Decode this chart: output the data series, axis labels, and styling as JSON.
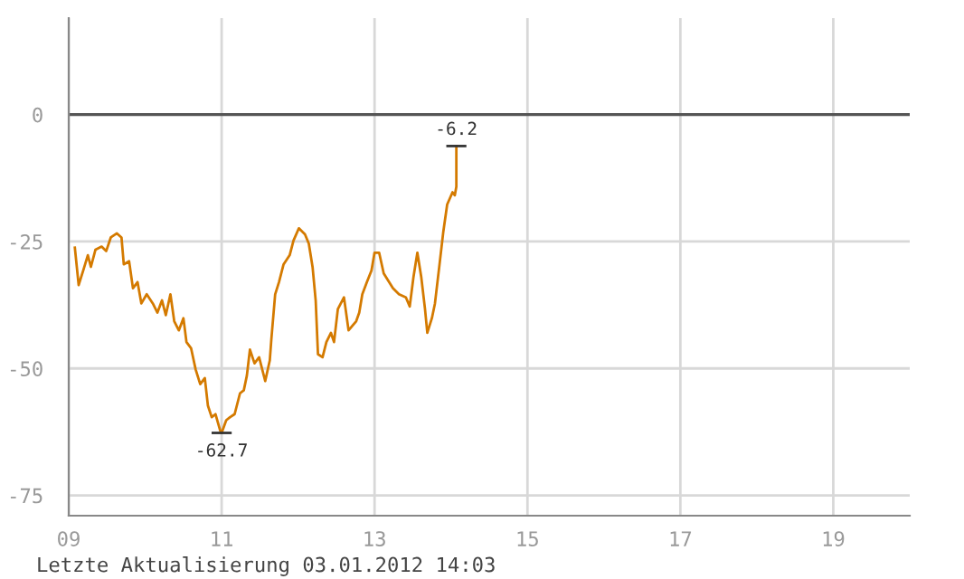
{
  "chart_data": {
    "type": "line",
    "x": [
      9.08,
      9.13,
      9.19,
      9.25,
      9.29,
      9.35,
      9.43,
      9.49,
      9.55,
      9.63,
      9.69,
      9.72,
      9.79,
      9.84,
      9.9,
      9.95,
      10.02,
      10.1,
      10.16,
      10.22,
      10.27,
      10.33,
      10.38,
      10.44,
      10.5,
      10.54,
      10.6,
      10.66,
      10.72,
      10.78,
      10.82,
      10.87,
      10.92,
      10.98,
      11.0,
      11.06,
      11.11,
      11.17,
      11.24,
      11.29,
      11.33,
      11.37,
      11.43,
      11.49,
      11.57,
      11.63,
      11.65,
      11.7,
      11.75,
      11.81,
      11.89,
      11.94,
      12.01,
      12.09,
      12.14,
      12.19,
      12.23,
      12.26,
      12.32,
      12.37,
      12.43,
      12.47,
      12.52,
      12.6,
      12.66,
      12.76,
      12.8,
      12.84,
      12.9,
      12.96,
      13.0,
      13.06,
      13.12,
      13.24,
      13.32,
      13.41,
      13.46,
      13.51,
      13.56,
      13.61,
      13.66,
      13.69,
      13.75,
      13.79,
      13.85,
      13.9,
      13.95,
      14.02,
      14.05,
      14.07,
      14.07
    ],
    "series": [
      {
        "color": "#d47a00",
        "values": [
          -26.2,
          -33.6,
          -30.7,
          -27.7,
          -30,
          -26.6,
          -26,
          -26.9,
          -24.2,
          -23.4,
          -24.2,
          -29.5,
          -28.9,
          -34.2,
          -33,
          -37.2,
          -35.4,
          -37.2,
          -39,
          -36.6,
          -39.5,
          -35.4,
          -40.7,
          -42.5,
          -40.1,
          -44.8,
          -46,
          -50.2,
          -53.1,
          -51.9,
          -57.3,
          -59.6,
          -59,
          -62.2,
          -62.7,
          -60.2,
          -59.6,
          -59,
          -54.9,
          -54.3,
          -51.4,
          -46.3,
          -49,
          -47.8,
          -52.5,
          -48.4,
          -44.3,
          -35.4,
          -33,
          -29.5,
          -27.7,
          -24.8,
          -22.4,
          -23.6,
          -25.4,
          -30.1,
          -36.6,
          -47.2,
          -47.8,
          -44.8,
          -43,
          -44.8,
          -38.3,
          -36,
          -42.5,
          -40.7,
          -39,
          -35.4,
          -33,
          -30.7,
          -27.2,
          -27.2,
          -31.3,
          -34.2,
          -35.4,
          -36,
          -37.8,
          -31.9,
          -27.2,
          -31.9,
          -38.3,
          -43,
          -40.1,
          -37.2,
          -29.5,
          -23,
          -17.7,
          -15.3,
          -15.9,
          -14.2,
          -6.2
        ]
      }
    ],
    "xlim": [
      9,
      20
    ],
    "xticks": [
      {
        "value": 9,
        "label": "09"
      },
      11,
      13,
      15,
      17,
      19
    ],
    "ylim": [
      -79,
      19
    ],
    "yticks": [
      -75,
      -50,
      -25,
      0
    ],
    "grid": true,
    "ref_lines": [
      {
        "axis": "y",
        "value": 0,
        "label": null,
        "color": "#555555"
      }
    ],
    "annotations": [
      {
        "text": "-62.7",
        "x": 11.0,
        "y": -62.7
      },
      {
        "text": "-6.2",
        "x": 14.07,
        "y": -6.2
      },
      "Letzte Aktualisierung 03.01.2012 14:03"
    ]
  }
}
